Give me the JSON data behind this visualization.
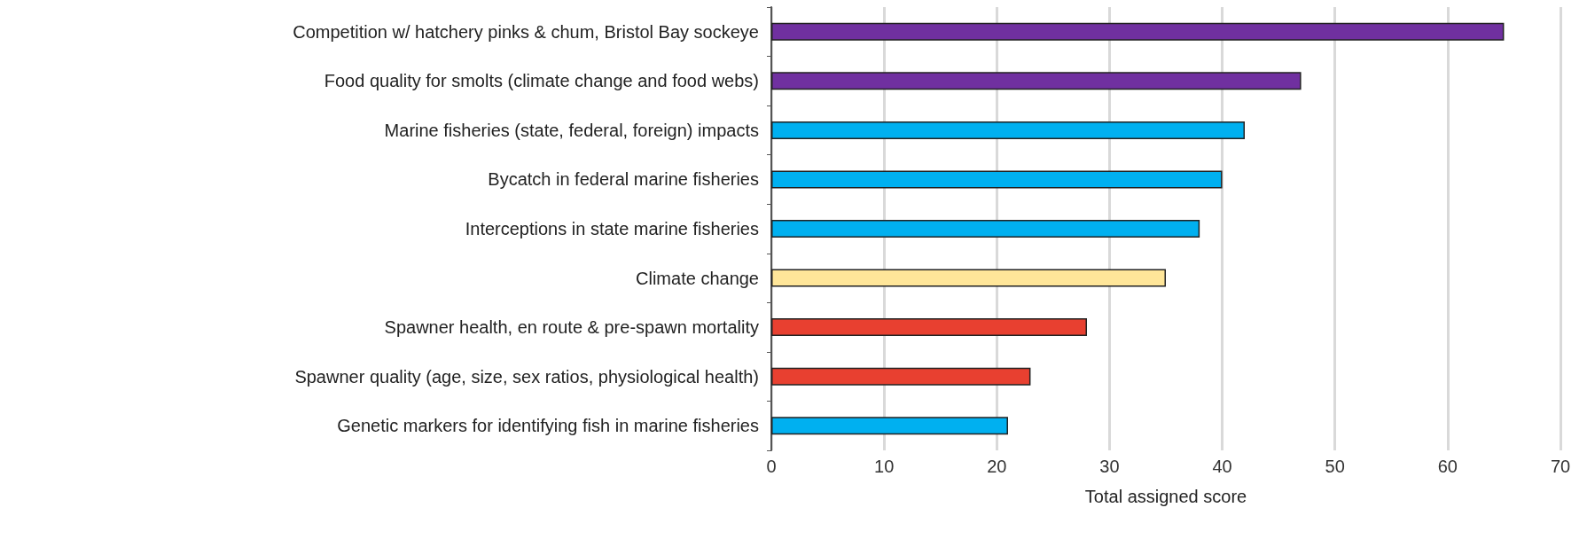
{
  "chart_data": {
    "type": "bar",
    "orientation": "horizontal",
    "xlabel": "Total assigned score",
    "categories": [
      "Competition w/ hatchery pinks & chum, Bristol Bay sockeye",
      "Food quality for smolts (climate change and food webs)",
      "Marine fisheries (state, federal, foreign) impacts",
      "Bycatch in federal marine fisheries",
      "Interceptions in state marine fisheries",
      "Climate change",
      "Spawner health, en route & pre-spawn mortality",
      "Spawner quality (age, size, sex ratios, physiological health)",
      "Genetic markers for identifying fish in marine fisheries"
    ],
    "values": [
      65,
      47,
      42,
      40,
      38,
      35,
      28,
      23,
      21
    ],
    "colors": [
      "#7030a0",
      "#7030a0",
      "#00b0f0",
      "#00b0f0",
      "#00b0f0",
      "#ffe699",
      "#e84030",
      "#e84030",
      "#00b0f0"
    ],
    "xlim": [
      0,
      70
    ],
    "xticks": [
      0,
      10,
      20,
      30,
      40,
      50,
      60,
      70
    ],
    "grid": "x"
  }
}
